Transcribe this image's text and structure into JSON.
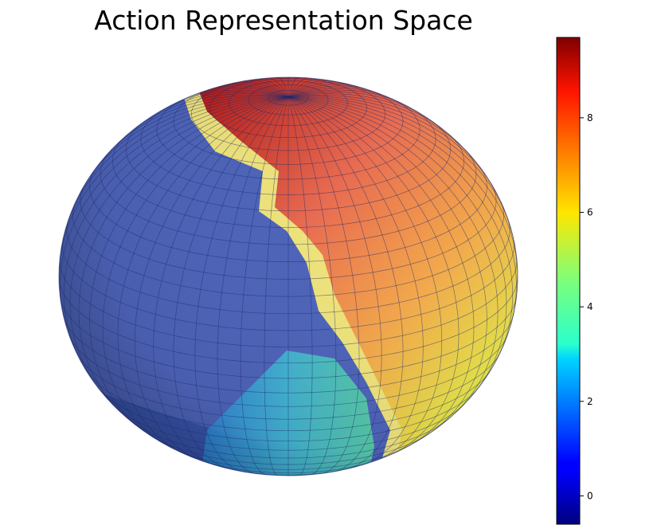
{
  "chart_data": {
    "type": "surface3d",
    "title": "Action Representation Space",
    "surface": "sphere",
    "colormap": "jet",
    "colorbar": {
      "vmin": -0.6,
      "vmax": 9.7,
      "ticks": [
        0,
        2,
        4,
        6,
        8
      ],
      "tick_labels": [
        "0",
        "2",
        "4",
        "6",
        "8"
      ],
      "placement": "right"
    },
    "grid_lines": true,
    "surface_alpha": 0.55,
    "regions": [
      {
        "name": "left hemisphere",
        "value": 0.6
      },
      {
        "name": "boundary band",
        "value": 5.8
      },
      {
        "name": "upper right",
        "value": 8.5
      },
      {
        "name": "lower right",
        "value": 4.5
      }
    ]
  }
}
